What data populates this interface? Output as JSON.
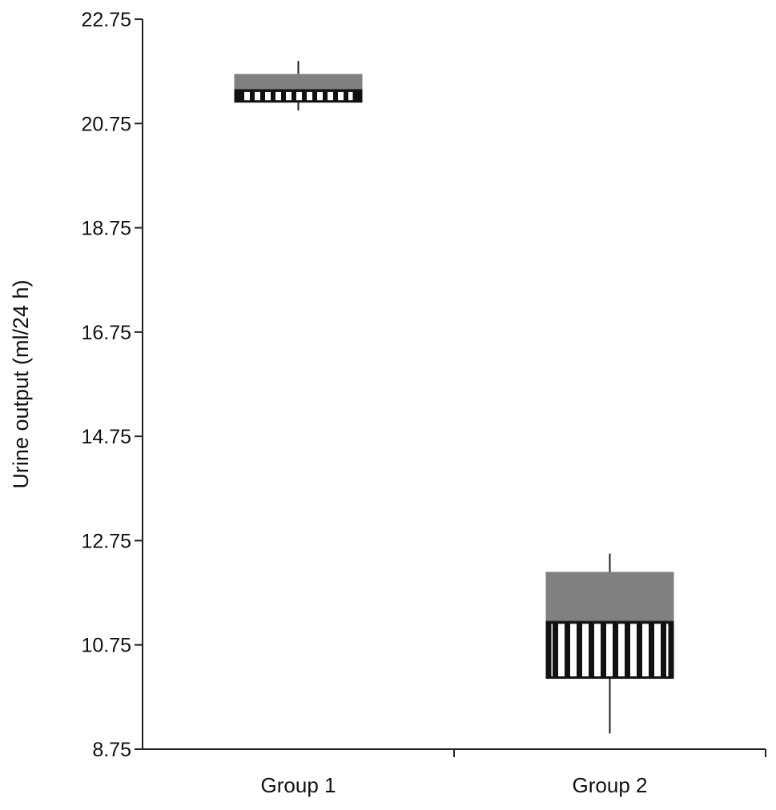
{
  "chart_data": {
    "type": "box",
    "title": "",
    "xlabel": "",
    "ylabel": "Urine output (ml/24 h)",
    "ylim": [
      8.75,
      22.75
    ],
    "yticks": [
      "8.75",
      "10.75",
      "12.75",
      "14.75",
      "16.75",
      "18.75",
      "20.75",
      "22.75"
    ],
    "categories": [
      "Group 1",
      "Group 2"
    ],
    "boxes": [
      {
        "category": "Group 1",
        "min": 21.0,
        "q1": 21.15,
        "median": 21.4,
        "q3": 21.7,
        "max": 21.95
      },
      {
        "category": "Group 2",
        "min": 9.05,
        "q1": 10.1,
        "median": 11.2,
        "q3": 12.15,
        "max": 12.5
      }
    ],
    "grid": false,
    "legend": "none",
    "colors": {
      "upper_box": "#808080",
      "lower_box_stripe_dark": "#111111",
      "lower_box_stripe_light": "#ffffff",
      "axis": "#222222"
    }
  }
}
